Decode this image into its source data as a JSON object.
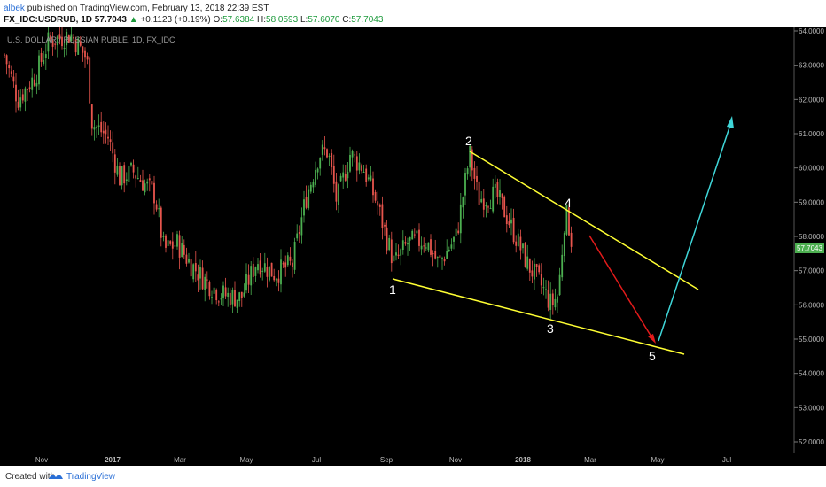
{
  "header": {
    "user": "albek",
    "published": "published on TradingView.com, February 13, 2018 22:39 EST",
    "symbol": "FX_IDC:USDRUB, 1D",
    "price": "57.7043",
    "arrow": "▲",
    "change": "+0.1123 (+0.19%)",
    "o_label": "O:",
    "o": "57.6384",
    "h_label": "H:",
    "h": "58.0593",
    "l_label": "L:",
    "l": "57.6070",
    "c_label": "C:",
    "c": "57.7043"
  },
  "chart": {
    "title": "U.S. DOLLAR / RUSSIAN RUBLE, 1D, FX_IDC",
    "last_price_tag": "57.7043",
    "y_ticks": [
      "64.0000",
      "63.0000",
      "62.0000",
      "61.0000",
      "60.0000",
      "59.0000",
      "58.0000",
      "57.0000",
      "56.0000",
      "55.0000",
      "54.0000",
      "53.0000",
      "52.0000"
    ],
    "x_ticks": [
      "Nov",
      "2017",
      "Mar",
      "May",
      "Jul",
      "Sep",
      "Nov",
      "2018",
      "Mar",
      "May",
      "Jul"
    ],
    "wave_labels": [
      "1",
      "2",
      "3",
      "4",
      "5"
    ],
    "colors": {
      "up": "#4caf50",
      "down": "#e8554d",
      "trendline": "#ffff33",
      "projection_down": "#e31b1b",
      "projection_up": "#3fd6d8",
      "background": "#000000"
    }
  },
  "chart_data": {
    "type": "candlestick",
    "title": "U.S. DOLLAR / RUSSIAN RUBLE, 1D, FX_IDC",
    "ylim": [
      52.0,
      64.0
    ],
    "x_ticks": [
      "Nov",
      "2017",
      "Mar",
      "May",
      "Jul",
      "Sep",
      "Nov",
      "2018",
      "Mar",
      "May",
      "Jul"
    ],
    "approx_close_path": [
      {
        "x": "Oct 2016",
        "y": 63.6
      },
      {
        "x": "Nov 2016",
        "y": 63.9
      },
      {
        "x": "Dec 2016",
        "y": 61.3
      },
      {
        "x": "Jan 2017",
        "y": 60.0
      },
      {
        "x": "Mar 2017",
        "y": 58.0
      },
      {
        "x": "Apr 2017",
        "y": 56.4
      },
      {
        "x": "Jun 2017",
        "y": 57.2
      },
      {
        "x": "Jul 2017",
        "y": 60.5
      },
      {
        "x": "Aug 2017",
        "y": 59.4
      },
      {
        "x": "Sep 2017",
        "y": 57.6
      },
      {
        "x": "Oct 2017",
        "y": 57.6
      },
      {
        "x": "Nov 2017",
        "y": 60.5
      },
      {
        "x": "Dec 2017",
        "y": 58.6
      },
      {
        "x": "Jan 2018",
        "y": 56.5
      },
      {
        "x": "Feb 2018",
        "y": 57.7043
      }
    ],
    "last": {
      "open": 57.6384,
      "high": 58.0593,
      "low": 57.607,
      "close": 57.7043
    }
  },
  "footer": {
    "created": "Created with",
    "brand": "TradingView"
  }
}
